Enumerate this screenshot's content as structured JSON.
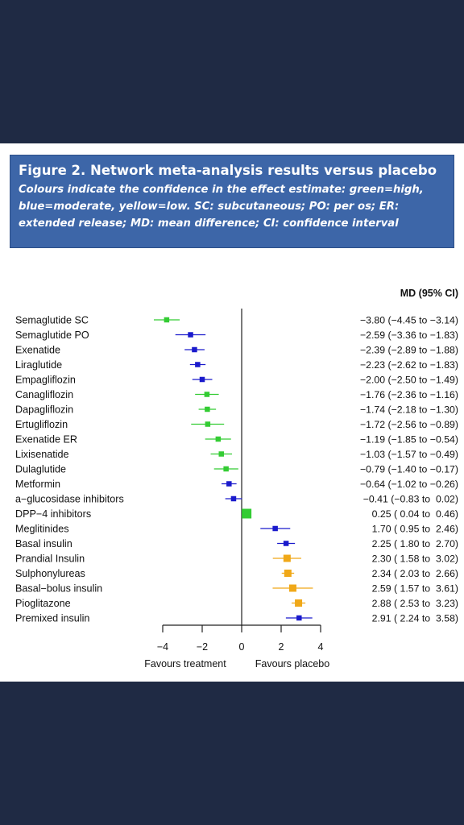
{
  "figure": {
    "title": "Figure 2. Network meta-analysis results versus placebo",
    "subtitle": "Colours indicate the confidence in the effect estimate: green=high, blue=moderate, yellow=low. SC: subcutaneous; PO: per os; ER: extended release; MD: mean difference; CI: confidence interval"
  },
  "colors": {
    "high": "#33cc33",
    "moderate": "#1a1acc",
    "low": "#f0a818",
    "header_bg": "#3d66a8",
    "page_bg": "#1f2a44"
  },
  "chart_data": {
    "type": "forest",
    "column_header": "MD (95% CI)",
    "xlim": [
      -4.5,
      4
    ],
    "xticks": [
      -4,
      -2,
      0,
      2,
      4
    ],
    "xtick_labels": [
      "−4",
      "−2",
      "0",
      "2",
      "4"
    ],
    "xlabel_left": "Favours treatment",
    "xlabel_right": "Favours placebo",
    "rows": [
      {
        "label": "Semaglutide SC",
        "md": -3.8,
        "lo": -4.45,
        "hi": -3.14,
        "confidence": "high",
        "ci_text": "−3.80 (−4.45 to −3.14)"
      },
      {
        "label": "Semaglutide PO",
        "md": -2.59,
        "lo": -3.36,
        "hi": -1.83,
        "confidence": "moderate",
        "ci_text": "−2.59 (−3.36 to −1.83)"
      },
      {
        "label": "Exenatide",
        "md": -2.39,
        "lo": -2.89,
        "hi": -1.88,
        "confidence": "moderate",
        "ci_text": "−2.39 (−2.89 to −1.88)"
      },
      {
        "label": "Liraglutide",
        "md": -2.23,
        "lo": -2.62,
        "hi": -1.83,
        "confidence": "moderate",
        "ci_text": "−2.23 (−2.62 to −1.83)"
      },
      {
        "label": "Empagliflozin",
        "md": -2.0,
        "lo": -2.5,
        "hi": -1.49,
        "confidence": "moderate",
        "ci_text": "−2.00 (−2.50 to −1.49)"
      },
      {
        "label": "Canagliflozin",
        "md": -1.76,
        "lo": -2.36,
        "hi": -1.16,
        "confidence": "high",
        "ci_text": "−1.76 (−2.36 to −1.16)"
      },
      {
        "label": "Dapagliflozin",
        "md": -1.74,
        "lo": -2.18,
        "hi": -1.3,
        "confidence": "high",
        "ci_text": "−1.74 (−2.18 to −1.30)"
      },
      {
        "label": "Ertugliflozin",
        "md": -1.72,
        "lo": -2.56,
        "hi": -0.89,
        "confidence": "high",
        "ci_text": "−1.72 (−2.56 to −0.89)"
      },
      {
        "label": "Exenatide ER",
        "md": -1.19,
        "lo": -1.85,
        "hi": -0.54,
        "confidence": "high",
        "ci_text": "−1.19 (−1.85 to −0.54)"
      },
      {
        "label": "Lixisenatide",
        "md": -1.03,
        "lo": -1.57,
        "hi": -0.49,
        "confidence": "high",
        "ci_text": "−1.03 (−1.57 to −0.49)"
      },
      {
        "label": "Dulaglutide",
        "md": -0.79,
        "lo": -1.4,
        "hi": -0.17,
        "confidence": "high",
        "ci_text": "−0.79 (−1.40 to −0.17)"
      },
      {
        "label": "Metformin",
        "md": -0.64,
        "lo": -1.02,
        "hi": -0.26,
        "confidence": "moderate",
        "ci_text": "−0.64 (−1.02 to −0.26)"
      },
      {
        "label": "a−glucosidase inhibitors",
        "md": -0.41,
        "lo": -0.83,
        "hi": 0.02,
        "confidence": "moderate",
        "ci_text": "−0.41 (−0.83 to  0.02)"
      },
      {
        "label": "DPP−4 inhibitors",
        "md": 0.25,
        "lo": 0.04,
        "hi": 0.46,
        "confidence": "high",
        "ci_text": "0.25 ( 0.04 to  0.46)"
      },
      {
        "label": "Meglitinides",
        "md": 1.7,
        "lo": 0.95,
        "hi": 2.46,
        "confidence": "moderate",
        "ci_text": "1.70 ( 0.95 to  2.46)"
      },
      {
        "label": "Basal insulin",
        "md": 2.25,
        "lo": 1.8,
        "hi": 2.7,
        "confidence": "moderate",
        "ci_text": "2.25 ( 1.80 to  2.70)"
      },
      {
        "label": "Prandial Insulin",
        "md": 2.3,
        "lo": 1.58,
        "hi": 3.02,
        "confidence": "low",
        "ci_text": "2.30 ( 1.58 to  3.02)"
      },
      {
        "label": "Sulphonylureas",
        "md": 2.34,
        "lo": 2.03,
        "hi": 2.66,
        "confidence": "low",
        "ci_text": "2.34 ( 2.03 to  2.66)"
      },
      {
        "label": "Basal−bolus insulin",
        "md": 2.59,
        "lo": 1.57,
        "hi": 3.61,
        "confidence": "low",
        "ci_text": "2.59 ( 1.57 to  3.61)"
      },
      {
        "label": "Pioglitazone",
        "md": 2.88,
        "lo": 2.53,
        "hi": 3.23,
        "confidence": "low",
        "ci_text": "2.88 ( 2.53 to  3.23)"
      },
      {
        "label": "Premixed insulin",
        "md": 2.91,
        "lo": 2.24,
        "hi": 3.58,
        "confidence": "moderate",
        "ci_text": "2.91 ( 2.24 to  3.58)"
      }
    ]
  }
}
